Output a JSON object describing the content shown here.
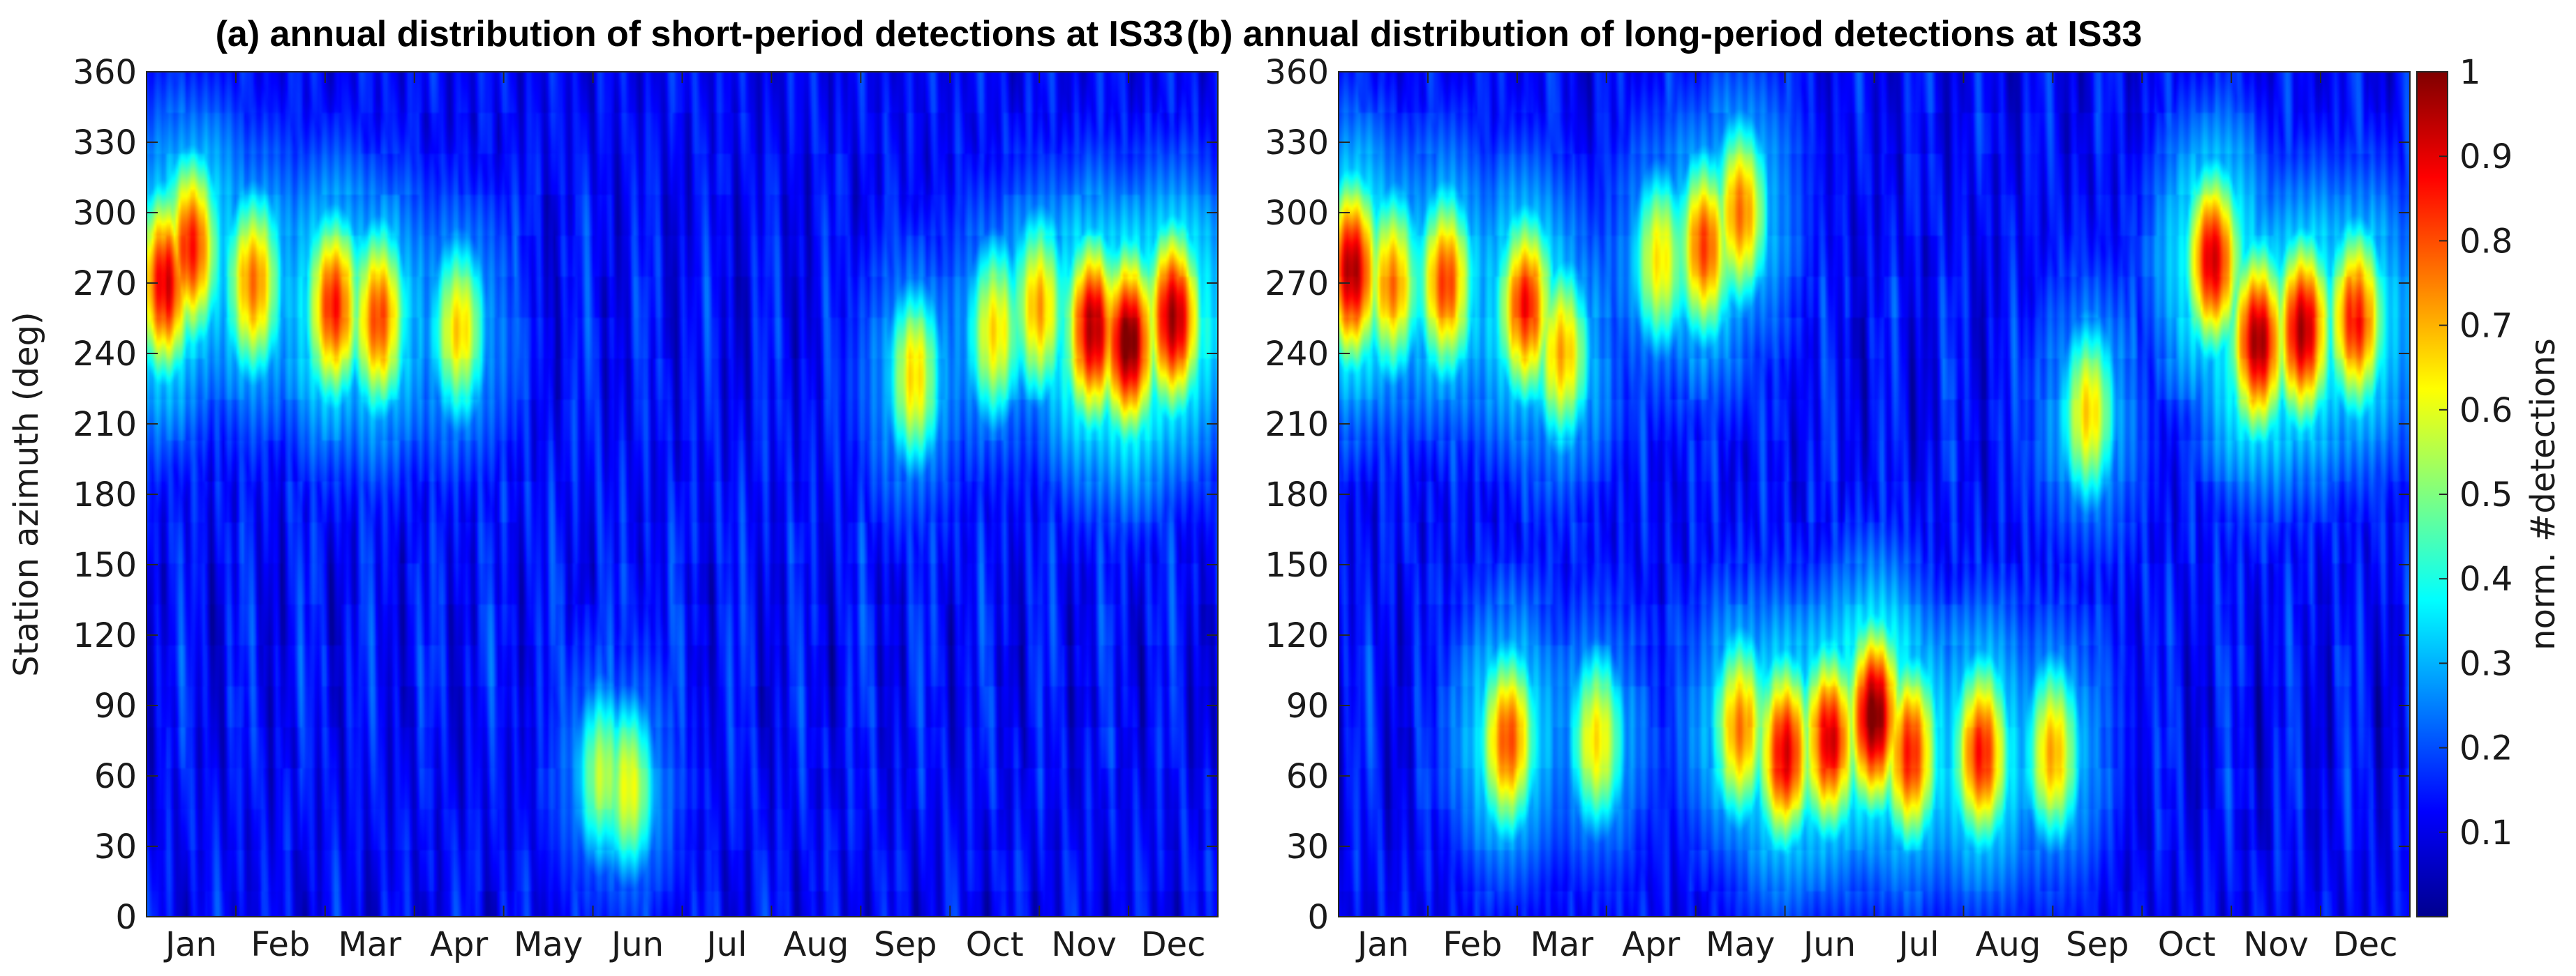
{
  "chart_data": [
    {
      "type": "heatmap",
      "panel": "a",
      "title": "(a) annual distribution of short-period detections at IS33",
      "xlabel": "",
      "ylabel": "Station azimuth (deg)",
      "x_categories": [
        "Jan",
        "Feb",
        "Mar",
        "Apr",
        "May",
        "Jun",
        "Jul",
        "Aug",
        "Sep",
        "Oct",
        "Nov",
        "Dec"
      ],
      "y_ticks": [
        0,
        30,
        60,
        90,
        120,
        150,
        180,
        210,
        240,
        270,
        300,
        330,
        360
      ],
      "ylim": [
        0,
        360
      ],
      "value_range": [
        0,
        1
      ],
      "hotspots": [
        {
          "month": 0.2,
          "azimuth": 270,
          "value": 0.9
        },
        {
          "month": 0.5,
          "azimuth": 285,
          "value": 0.85
        },
        {
          "month": 1.2,
          "azimuth": 270,
          "value": 0.75
        },
        {
          "month": 2.1,
          "azimuth": 260,
          "value": 0.85
        },
        {
          "month": 2.6,
          "azimuth": 255,
          "value": 0.8
        },
        {
          "month": 3.5,
          "azimuth": 250,
          "value": 0.65
        },
        {
          "month": 5.1,
          "azimuth": 60,
          "value": 0.55
        },
        {
          "month": 5.4,
          "azimuth": 55,
          "value": 0.6
        },
        {
          "month": 8.6,
          "azimuth": 230,
          "value": 0.65
        },
        {
          "month": 9.5,
          "azimuth": 250,
          "value": 0.65
        },
        {
          "month": 10.0,
          "azimuth": 260,
          "value": 0.7
        },
        {
          "month": 10.6,
          "azimuth": 250,
          "value": 0.95
        },
        {
          "month": 11.0,
          "azimuth": 245,
          "value": 1.0
        },
        {
          "month": 11.5,
          "azimuth": 255,
          "value": 0.95
        }
      ]
    },
    {
      "type": "heatmap",
      "panel": "b",
      "title": "(b) annual distribution of long-period detections at IS33",
      "xlabel": "",
      "ylabel": "",
      "x_categories": [
        "Jan",
        "Feb",
        "Mar",
        "Apr",
        "May",
        "Jun",
        "Jul",
        "Aug",
        "Sep",
        "Oct",
        "Nov",
        "Dec"
      ],
      "y_ticks": [
        0,
        30,
        60,
        90,
        120,
        150,
        180,
        210,
        240,
        270,
        300,
        330,
        360
      ],
      "ylim": [
        0,
        360
      ],
      "value_range": [
        0,
        1
      ],
      "hotspots": [
        {
          "month": 0.15,
          "azimuth": 275,
          "value": 0.95
        },
        {
          "month": 0.6,
          "azimuth": 270,
          "value": 0.75
        },
        {
          "month": 1.2,
          "azimuth": 270,
          "value": 0.8
        },
        {
          "month": 2.1,
          "azimuth": 260,
          "value": 0.85
        },
        {
          "month": 2.5,
          "azimuth": 240,
          "value": 0.7
        },
        {
          "month": 3.6,
          "azimuth": 280,
          "value": 0.65
        },
        {
          "month": 4.1,
          "azimuth": 285,
          "value": 0.8
        },
        {
          "month": 4.5,
          "azimuth": 300,
          "value": 0.75
        },
        {
          "month": 1.9,
          "azimuth": 75,
          "value": 0.8
        },
        {
          "month": 2.9,
          "azimuth": 75,
          "value": 0.65
        },
        {
          "month": 4.5,
          "azimuth": 80,
          "value": 0.75
        },
        {
          "month": 5.0,
          "azimuth": 70,
          "value": 0.9
        },
        {
          "month": 5.5,
          "azimuth": 75,
          "value": 0.9
        },
        {
          "month": 6.0,
          "azimuth": 85,
          "value": 1.0
        },
        {
          "month": 6.4,
          "azimuth": 70,
          "value": 0.85
        },
        {
          "month": 7.2,
          "azimuth": 70,
          "value": 0.85
        },
        {
          "month": 8.0,
          "azimuth": 70,
          "value": 0.7
        },
        {
          "month": 8.4,
          "azimuth": 215,
          "value": 0.65
        },
        {
          "month": 9.8,
          "azimuth": 280,
          "value": 0.9
        },
        {
          "month": 10.3,
          "azimuth": 245,
          "value": 0.95
        },
        {
          "month": 10.8,
          "azimuth": 250,
          "value": 0.95
        },
        {
          "month": 11.4,
          "azimuth": 255,
          "value": 0.85
        }
      ]
    }
  ],
  "colorbar": {
    "label": "norm. #detections",
    "ticks": [
      "0.1",
      "0.2",
      "0.3",
      "0.4",
      "0.5",
      "0.6",
      "0.7",
      "0.8",
      "0.9",
      "1"
    ],
    "colormap": "jet",
    "range": [
      0,
      1
    ]
  }
}
